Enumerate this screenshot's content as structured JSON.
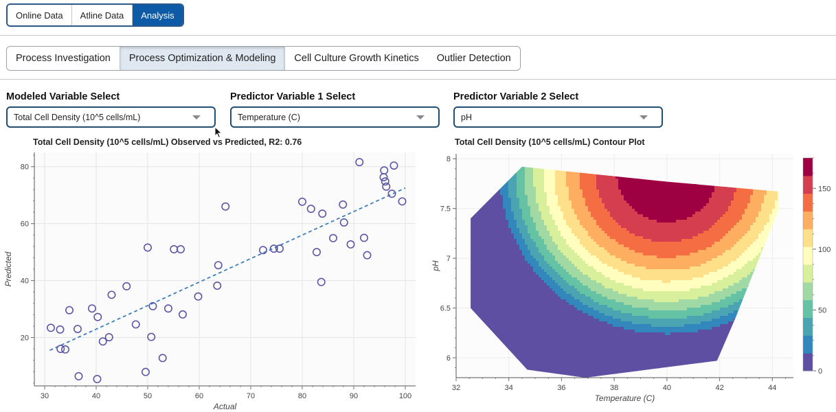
{
  "top_tabs": [
    {
      "label": "Online Data",
      "active": false
    },
    {
      "label": "Atline Data",
      "active": false
    },
    {
      "label": "Analysis",
      "active": true
    }
  ],
  "sub_tabs": [
    {
      "label": "Process Investigation",
      "active": false
    },
    {
      "label": "Process Optimization & Modeling",
      "active": true
    },
    {
      "label": "Cell Culture Growth Kinetics",
      "active": false
    },
    {
      "label": "Outlier Detection",
      "active": false
    }
  ],
  "selects": [
    {
      "label": "Modeled Variable Select",
      "value": "Total Cell Density (10^5 cells/mL)"
    },
    {
      "label": "Predictor Variable 1 Select",
      "value": "Temperature (C)"
    },
    {
      "label": "Predictor Variable 2 Select",
      "value": "pH"
    }
  ],
  "scatter": {
    "title": "Total Cell Density (10^5 cells/mL) Observed vs Predicted, R2: 0.76",
    "chart_data": {
      "type": "scatter",
      "xlabel": "Actual",
      "ylabel": "Predicted",
      "xlim": [
        28,
        102
      ],
      "ylim": [
        3,
        85
      ],
      "xticks": [
        "30",
        "40",
        "50",
        "60",
        "70",
        "80",
        "90",
        "100"
      ],
      "yticks": [
        "20",
        "40",
        "60",
        "80"
      ],
      "grid": true,
      "marker_color": "#5b57a6",
      "trendline": {
        "x": [
          31,
          100
        ],
        "y": [
          15.5,
          72.5
        ],
        "color": "#3a7ebf",
        "style": "dashed"
      },
      "points": [
        [
          31.2,
          23.4
        ],
        [
          33,
          22.8
        ],
        [
          33.1,
          16
        ],
        [
          34,
          15.8
        ],
        [
          34.8,
          29.6
        ],
        [
          36.4,
          23
        ],
        [
          36.6,
          6.4
        ],
        [
          39.2,
          30.2
        ],
        [
          40.2,
          5.4
        ],
        [
          40.3,
          27.2
        ],
        [
          41.3,
          18.6
        ],
        [
          42.5,
          20.1
        ],
        [
          43,
          35
        ],
        [
          45.9,
          38
        ],
        [
          47.7,
          24.6
        ],
        [
          49.6,
          7.9
        ],
        [
          50,
          51.6
        ],
        [
          50.7,
          20.2
        ],
        [
          51,
          31
        ],
        [
          52.9,
          12.8
        ],
        [
          54,
          30.2
        ],
        [
          55.1,
          51
        ],
        [
          56.4,
          51
        ],
        [
          56.8,
          28.1
        ],
        [
          59.8,
          34.4
        ],
        [
          63.5,
          38.2
        ],
        [
          63.7,
          45.4
        ],
        [
          65.1,
          66
        ],
        [
          72.4,
          50.7
        ],
        [
          74.5,
          51.2
        ],
        [
          75.6,
          51.2
        ],
        [
          80,
          67.7
        ],
        [
          81.7,
          65.2
        ],
        [
          82.8,
          50
        ],
        [
          83.7,
          39.5
        ],
        [
          83.9,
          63.5
        ],
        [
          86,
          54.9
        ],
        [
          87.9,
          66.7
        ],
        [
          88.1,
          60.4
        ],
        [
          89.4,
          52.7
        ],
        [
          91.1,
          81.6
        ],
        [
          92,
          55
        ],
        [
          92.6,
          48.9
        ],
        [
          95.8,
          76.3
        ],
        [
          95.9,
          78.7
        ],
        [
          96.1,
          74.8
        ],
        [
          96.3,
          73
        ],
        [
          97.4,
          70.5
        ],
        [
          97.8,
          80.4
        ],
        [
          99.4,
          67.8
        ]
      ]
    }
  },
  "contour": {
    "title": "Total Cell Density (10^5 cells/mL) Contour Plot",
    "chart_data": {
      "type": "heatmap",
      "xlabel": "Temperature (C)",
      "ylabel": "pH",
      "xlim": [
        32,
        44.8
      ],
      "ylim": [
        5.8,
        8.05
      ],
      "xticks": [
        "32",
        "34",
        "36",
        "38",
        "40",
        "42",
        "44"
      ],
      "yticks": [
        "6",
        "6.5",
        "7",
        "7.5",
        "8"
      ],
      "model": {
        "center_temp": 40,
        "center_ph": 7.85,
        "peak": 175,
        "temp_coef": 4.0,
        "ph_coef": 62
      },
      "colorbar": {
        "ticks": [
          "0",
          "50",
          "100",
          "150"
        ],
        "levels": [
          0,
          175
        ],
        "colors": [
          "#5e4fa2",
          "#3288bd",
          "#4ba4b1",
          "#66c2a5",
          "#a1d9a4",
          "#d8ef9b",
          "#fffebf",
          "#fee08b",
          "#fdae61",
          "#f46d43",
          "#d53e4f",
          "#9e0142"
        ]
      }
    }
  }
}
